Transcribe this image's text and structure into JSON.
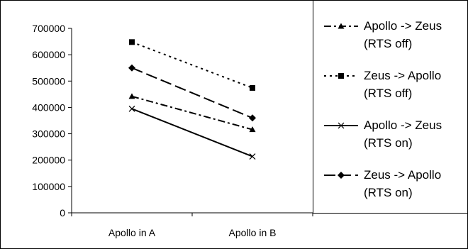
{
  "chart_data": {
    "type": "line",
    "categories": [
      "Apollo in A",
      "Apollo in B"
    ],
    "ylim": [
      0,
      700000
    ],
    "yticks": [
      0,
      100000,
      200000,
      300000,
      400000,
      500000,
      600000,
      700000
    ],
    "grid": false,
    "legend_position": "right",
    "series": [
      {
        "name": "Apollo -> Zeus (RTS off)",
        "legend_lines": [
          "Apollo -> Zeus",
          "(RTS off)"
        ],
        "values": [
          442000,
          316000
        ],
        "line_style": "dash-dot",
        "marker": "triangle"
      },
      {
        "name": "Zeus -> Apollo (RTS off)",
        "legend_lines": [
          "Zeus -> Apollo",
          "(RTS off)"
        ],
        "values": [
          648000,
          474000
        ],
        "line_style": "dotted",
        "marker": "square"
      },
      {
        "name": "Apollo -> Zeus (RTS on)",
        "legend_lines": [
          "Apollo -> Zeus",
          "(RTS on)"
        ],
        "values": [
          395000,
          214000
        ],
        "line_style": "solid",
        "marker": "x"
      },
      {
        "name": "Zeus -> Apollo (RTS on)",
        "legend_lines": [
          "Zeus -> Apollo",
          "(RTS on)"
        ],
        "values": [
          550000,
          360000
        ],
        "line_style": "long-dash",
        "marker": "diamond"
      }
    ]
  }
}
